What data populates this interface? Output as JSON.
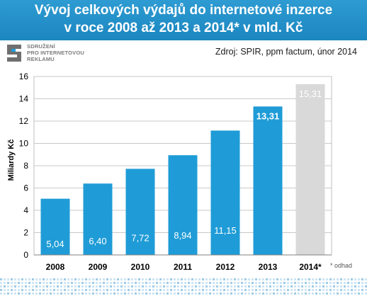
{
  "header": {
    "title_line1": "Vývoj celkových výdajů do internetové inzerce",
    "title_line2": "v roce 2008 až 2013 a 2014* v mld. Kč"
  },
  "logo": {
    "icon": "sdruzeni-logo-icon",
    "line1": "SDRUŽENÍ",
    "line2": "PRO INTERNETOVOU",
    "line3": "REKLAMU"
  },
  "source": "Zdroj: SPIR, ppm factum, únor 2014",
  "footnote": "* odhad",
  "colors": {
    "title_bg": "#1f8fc9",
    "bar": "#1f9cd7",
    "bar_estimate": "#d9d9d9"
  },
  "chart_data": {
    "type": "bar",
    "title": "Vývoj celkových výdajů do internetové inzerce v roce 2008 až 2013 a 2014* v mld. Kč",
    "xlabel": "",
    "ylabel": "Miliardy Kč",
    "categories": [
      "2008",
      "2009",
      "2010",
      "2011",
      "2012",
      "2013",
      "2014*"
    ],
    "values": [
      5.04,
      6.4,
      7.72,
      8.94,
      11.15,
      13.31,
      15.31
    ],
    "labels": [
      "5,04",
      "6,40",
      "7,72",
      "8,94",
      "11,15",
      "13,31",
      "15,31"
    ],
    "estimate": [
      false,
      false,
      false,
      false,
      false,
      false,
      true
    ],
    "ylim": [
      0,
      16
    ],
    "yticks": [
      0,
      2,
      4,
      6,
      8,
      10,
      12,
      14,
      16
    ],
    "grid": true,
    "legend": "none"
  }
}
